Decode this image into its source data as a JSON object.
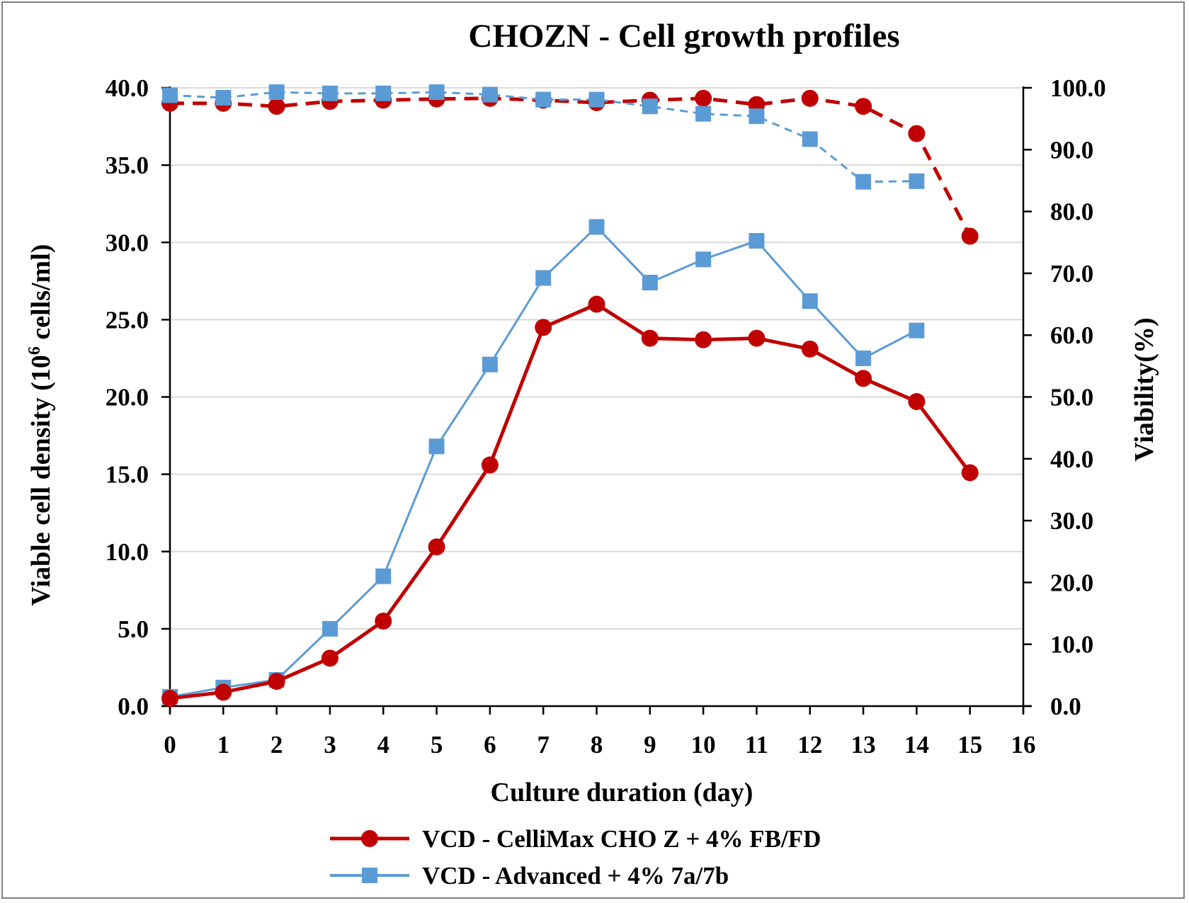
{
  "chart_data": {
    "type": "line",
    "title": "CHOZN - Cell growth profiles",
    "xlabel": "Culture duration (day)",
    "ylabel_main": "Viable cell density (10",
    "ylabel_sup": "6",
    "ylabel_rest": " cells/ml)",
    "y2label": "Viability(%)",
    "xlim": [
      0,
      16
    ],
    "ylim": [
      0,
      40
    ],
    "y2lim": [
      0,
      100
    ],
    "x_ticks": [
      "0",
      "1",
      "2",
      "3",
      "4",
      "5",
      "6",
      "7",
      "8",
      "9",
      "10",
      "11",
      "12",
      "13",
      "14",
      "15",
      "16"
    ],
    "y_ticks": [
      "0.0",
      "5.0",
      "10.0",
      "15.0",
      "20.0",
      "25.0",
      "30.0",
      "35.0",
      "40.0"
    ],
    "y2_ticks": [
      "0.0",
      "10.0",
      "20.0",
      "30.0",
      "40.0",
      "50.0",
      "60.0",
      "70.0",
      "80.0",
      "90.0",
      "100.0"
    ],
    "grid": true,
    "legend_position": "bottom",
    "series": [
      {
        "name": "VCD - CelliMax CHO Z + 4% FB/FD",
        "axis": "left",
        "style": "solid",
        "marker": "circle",
        "color": "#c00000",
        "x": [
          0,
          1,
          2,
          3,
          4,
          5,
          6,
          7,
          8,
          9,
          10,
          11,
          12,
          13,
          14,
          15
        ],
        "values": [
          0.5,
          0.9,
          1.6,
          3.1,
          5.5,
          10.3,
          15.6,
          24.5,
          26.0,
          23.8,
          23.7,
          23.8,
          23.1,
          21.2,
          19.7,
          15.1
        ]
      },
      {
        "name": "VCD - Advanced + 4% 7a/7b",
        "axis": "left",
        "style": "solid",
        "marker": "square",
        "color": "#5b9bd5",
        "x": [
          0,
          1,
          2,
          3,
          4,
          5,
          6,
          7,
          8,
          9,
          10,
          11,
          12,
          13,
          14
        ],
        "values": [
          0.6,
          1.2,
          1.7,
          5.0,
          8.4,
          16.8,
          22.1,
          27.7,
          31.0,
          27.4,
          28.9,
          30.1,
          26.2,
          22.5,
          24.3
        ]
      },
      {
        "axis": "right",
        "style": "dashed",
        "marker": "circle",
        "color": "#c00000",
        "x": [
          0,
          1,
          2,
          3,
          4,
          5,
          6,
          7,
          8,
          9,
          10,
          11,
          12,
          13,
          14,
          15
        ],
        "values": [
          97.5,
          97.5,
          97.0,
          97.8,
          98.0,
          98.2,
          98.3,
          98.0,
          97.6,
          98.0,
          98.3,
          97.3,
          98.3,
          97.0,
          92.6,
          76.0
        ]
      },
      {
        "axis": "right",
        "style": "dashed",
        "marker": "square",
        "color": "#5b9bd5",
        "x": [
          0,
          1,
          2,
          3,
          4,
          5,
          6,
          7,
          8,
          9,
          10,
          11,
          12,
          13,
          14
        ],
        "values": [
          98.8,
          98.4,
          99.3,
          99.1,
          99.1,
          99.3,
          98.9,
          98.1,
          98.1,
          97.0,
          95.8,
          95.4,
          91.7,
          84.8,
          84.9
        ]
      }
    ]
  }
}
